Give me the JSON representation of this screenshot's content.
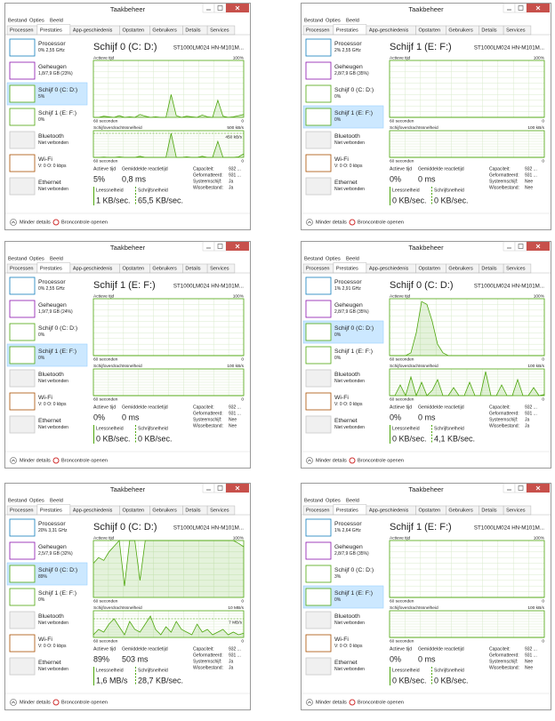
{
  "common": {
    "title": "Taakbeheer",
    "menu": [
      "Bestand",
      "Opties",
      "Beeld"
    ],
    "tabs": [
      "Processen",
      "Prestaties",
      "App-geschiedenis",
      "Opstarten",
      "Gebruikers",
      "Details",
      "Services"
    ],
    "devices": [
      "Processor",
      "Geheugen",
      "Schijf 0 (C: D:)",
      "Schijf 1 (E: F:)",
      "Bluetooth",
      "Wi-Fi",
      "Ethernet"
    ],
    "device_colors": [
      "#117dbb",
      "#8b12ae",
      "#4da60c",
      "#4da60c",
      "#c8c8c8",
      "#a74f01",
      "#c8c8c8"
    ],
    "active_time": "Actieve tijd",
    "transfer": "Schijfoverdrachtssnelheid",
    "span": "60 seconden",
    "zero": 0,
    "full": {
      "value": 100,
      "label": "100%"
    },
    "avg_response": "Gemiddelde reactietijd",
    "read": "Leessnelheid",
    "write": "Schrijfsnelheid",
    "info_labels": [
      "Capaciteit:",
      "Geformatteerd:",
      "Systeemschijf:",
      "Wisselbestand:"
    ],
    "less": "Minder details",
    "monitor": "Broncontrole openen"
  },
  "windows": [
    {
      "status": [
        "0% 2,55 GHz",
        "1,8/7,9 GB (23%)",
        "5%",
        "0%",
        "Niet verbonden",
        "V: 0 O: 0 kbps",
        "Niet verbonden"
      ],
      "selected": 2,
      "heading": "Schijf 0 (C: D:)",
      "model": "ST1000LM024 HN-M101M...",
      "transfer_top": {
        "value": 500,
        "label": "500 kB/s"
      },
      "transfer_mark": {
        "value": 450,
        "label": "450 kB/s"
      },
      "activity": [
        0,
        0,
        2,
        1,
        0,
        3,
        0,
        1,
        0,
        5,
        2,
        0,
        1,
        0,
        0,
        40,
        3,
        0,
        2,
        1,
        0,
        4,
        1,
        0,
        30,
        2,
        0,
        1,
        3,
        5
      ],
      "transfer_values": [
        0,
        0,
        5,
        0,
        0,
        10,
        0,
        0,
        0,
        20,
        0,
        0,
        0,
        0,
        0,
        450,
        0,
        0,
        10,
        0,
        0,
        20,
        0,
        0,
        300,
        0,
        0,
        0,
        10,
        65
      ],
      "active_value": "5%",
      "response_value": "0,8 ms",
      "read_value": "1 KB/sec.",
      "write_value": "65,5 KB/sec.",
      "info": [
        "932 ...",
        "931 ...",
        "Ja",
        "Ja"
      ]
    },
    {
      "status": [
        "2% 2,55 GHz",
        "2,8/7,9 GB (35%)",
        "0%",
        "0%",
        "Niet verbonden",
        "V: 0 O: 0 kbps",
        "Niet verbonden"
      ],
      "selected": 3,
      "heading": "Schijf 1 (E: F:)",
      "model": "ST1000LM024 HN-M101M...",
      "transfer_top": {
        "value": 100,
        "label": "100 kB/s"
      },
      "activity": [
        0,
        0
      ],
      "transfer_values": [
        0,
        0
      ],
      "active_value": "0%",
      "response_value": "0 ms",
      "read_value": "0 KB/sec.",
      "write_value": "0 KB/sec.",
      "info": [
        "932 ...",
        "931 ...",
        "Nee",
        "Nee"
      ]
    },
    {
      "status": [
        "0% 2,55 GHz",
        "1,9/7,9 GB (24%)",
        "0%",
        "0%",
        "Niet verbonden",
        "V: 0 O: 0 kbps",
        "Niet verbonden"
      ],
      "selected": 3,
      "heading": "Schijf 1 (E: F:)",
      "model": "ST1000LM024 HN-M101M...",
      "transfer_top": {
        "value": 100,
        "label": "100 kB/s"
      },
      "activity": [
        0,
        0
      ],
      "transfer_values": [
        0,
        0
      ],
      "active_value": "0%",
      "response_value": "0 ms",
      "read_value": "0 KB/sec.",
      "write_value": "0 KB/sec.",
      "info": [
        "932 ...",
        "931 ...",
        "Nee",
        "Nee"
      ]
    },
    {
      "status": [
        "1% 2,91 GHz",
        "2,8/7,9 GB (35%)",
        "0%",
        "0%",
        "Niet verbonden",
        "V: 0 O: 0 kbps",
        "Niet verbonden"
      ],
      "selected": 2,
      "heading": "Schijf 0 (C: D:)",
      "model": "ST1000LM024 HN-M101M...",
      "transfer_top": {
        "value": 100,
        "label": "100 kB/s"
      },
      "activity": [
        0,
        0,
        0,
        0,
        5,
        40,
        95,
        90,
        60,
        20,
        5,
        0,
        0,
        0,
        0,
        0,
        0,
        0,
        0,
        0,
        0,
        0,
        0,
        0,
        0,
        0,
        0,
        0,
        0,
        0
      ],
      "transfer_values": [
        0,
        0,
        40,
        0,
        70,
        0,
        50,
        0,
        20,
        60,
        0,
        0,
        30,
        0,
        0,
        50,
        0,
        0,
        90,
        0,
        0,
        40,
        0,
        0,
        60,
        0,
        0,
        30,
        0,
        4
      ],
      "active_value": "0%",
      "response_value": "0 ms",
      "read_value": "0 KB/sec.",
      "write_value": "4,1 KB/sec.",
      "info": [
        "932 ...",
        "931 ...",
        "Ja",
        "Ja"
      ]
    },
    {
      "status": [
        "20% 3,31 GHz",
        "2,5/7,9 GB (32%)",
        "89%",
        "0%",
        "Niet verbonden",
        "V: 0 O: 0 kbps",
        "Niet verbonden"
      ],
      "selected": 2,
      "heading": "Schijf 0 (C: D:)",
      "model": "ST1000LM024 HN-M101M...",
      "transfer_top": {
        "value": 10,
        "label": "10 MB/s"
      },
      "transfer_mark": {
        "value": 7,
        "label": "7 MB/s"
      },
      "activity": [
        60,
        70,
        65,
        80,
        90,
        100,
        20,
        100,
        100,
        30,
        100,
        100,
        100,
        100,
        100,
        100,
        100,
        100,
        100,
        100,
        100,
        100,
        100,
        100,
        100,
        100,
        100,
        100,
        95,
        89
      ],
      "transfer_values": [
        1,
        3,
        2,
        5,
        7,
        4,
        1,
        6,
        3,
        2,
        5,
        8,
        3,
        1,
        4,
        2,
        6,
        3,
        2,
        1,
        5,
        2,
        3,
        1,
        2,
        3,
        1,
        2,
        1,
        1.6
      ],
      "active_value": "89%",
      "response_value": "503 ms",
      "read_value": "1,6 MB/s",
      "write_value": "28,7 KB/sec.",
      "info": [
        "932 ...",
        "931 ...",
        "Ja",
        "Ja"
      ]
    },
    {
      "status": [
        "1% 2,64 GHz",
        "2,8/7,9 GB (35%)",
        "3%",
        "0%",
        "Niet verbonden",
        "V: 0 O: 0 kbps",
        "Niet verbonden"
      ],
      "selected": 3,
      "heading": "Schijf 1 (E: F:)",
      "model": "ST1000LM024 HN-M101M...",
      "transfer_top": {
        "value": 100,
        "label": "100 kB/s"
      },
      "activity": [
        0,
        0
      ],
      "transfer_values": [
        0,
        0
      ],
      "active_value": "0%",
      "response_value": "0 ms",
      "read_value": "0 KB/sec.",
      "write_value": "0 KB/sec.",
      "info": [
        "932 ...",
        "931 ...",
        "Nee",
        "Nee"
      ]
    }
  ]
}
